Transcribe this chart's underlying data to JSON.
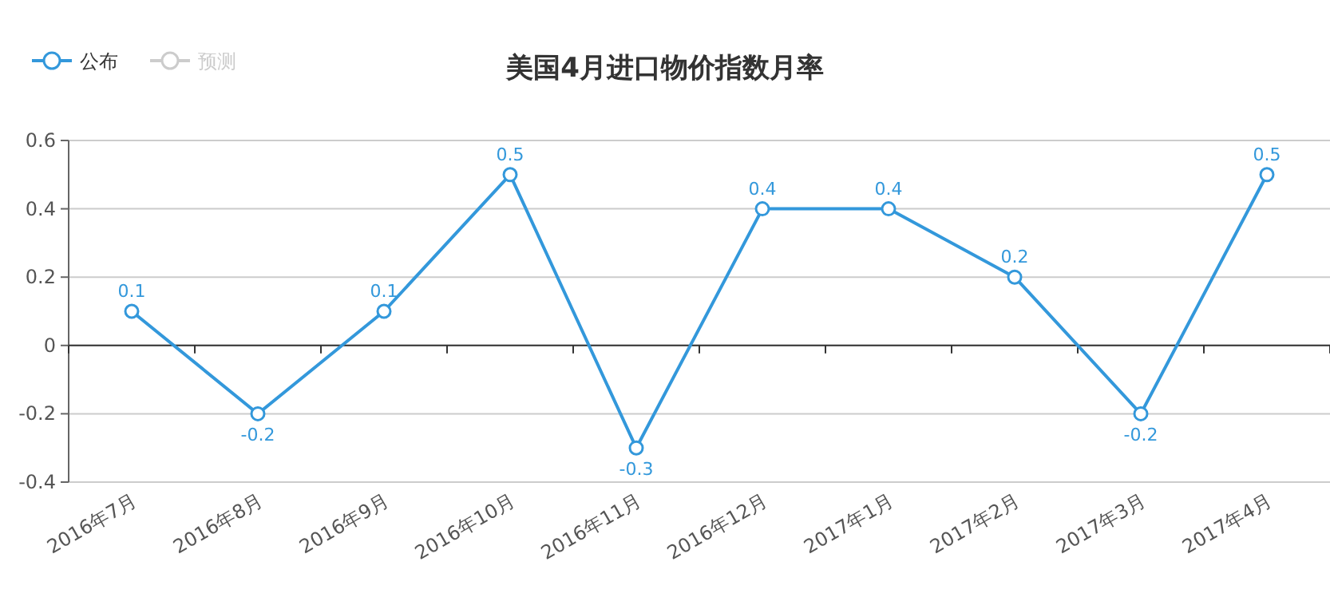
{
  "chart_data": {
    "type": "line",
    "title": "美国4月进口物价指数月率",
    "categories": [
      "2016年7月",
      "2016年8月",
      "2016年9月",
      "2016年10月",
      "2016年11月",
      "2016年12月",
      "2017年1月",
      "2017年2月",
      "2017年3月",
      "2017年4月"
    ],
    "series": [
      {
        "name": "公布",
        "color": "#3398db",
        "values": [
          0.1,
          -0.2,
          0.1,
          0.5,
          -0.3,
          0.4,
          0.4,
          0.2,
          -0.2,
          0.5
        ]
      },
      {
        "name": "预测",
        "color": "#cccccc",
        "values": [
          null,
          null,
          null,
          null,
          null,
          null,
          null,
          null,
          null,
          null
        ]
      }
    ],
    "ylim": [
      -0.4,
      0.6
    ],
    "yticks": [
      -0.4,
      -0.2,
      0,
      0.2,
      0.4,
      0.6
    ],
    "grid": "y",
    "legend": "top left",
    "marker": "circle",
    "line_style": "solid",
    "data_labels": true
  }
}
